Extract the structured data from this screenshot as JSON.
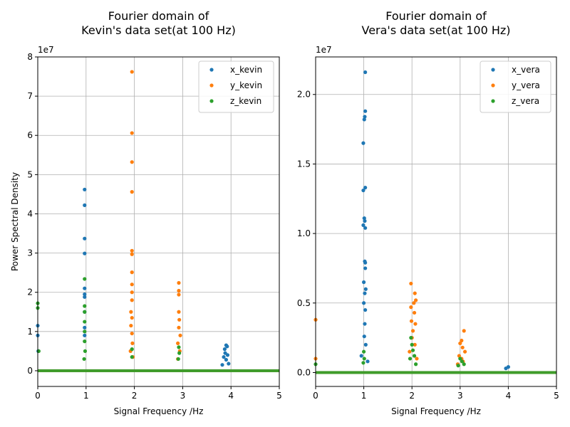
{
  "chart_data": [
    {
      "type": "scatter",
      "title": "Fourier domain of\nKevin's data set(at 100 Hz)",
      "xlabel": "Signal Frequency /Hz",
      "ylabel": "Power Spectral Density",
      "y_offset_label": "1e7",
      "xlim": [
        0,
        5
      ],
      "ylim": [
        -0.4,
        8.0
      ],
      "y_unit_multiplier": 10000000,
      "xticks": [
        0,
        1,
        2,
        3,
        4,
        5
      ],
      "xtick_labels": [
        "0",
        "1",
        "2",
        "3",
        "4",
        "5"
      ],
      "yticks": [
        0,
        1,
        2,
        3,
        4,
        5,
        6,
        7,
        8
      ],
      "ytick_labels": [
        "0",
        "1",
        "2",
        "3",
        "4",
        "5",
        "6",
        "7",
        "8"
      ],
      "grid": true,
      "legend_position": "top-right",
      "series": [
        {
          "name": "x_kevin",
          "color": "#1f77b4",
          "points": [
            [
              0.0,
              1.15
            ],
            [
              0.0,
              0.9
            ],
            [
              0.01,
              0.5
            ],
            [
              0.97,
              4.62
            ],
            [
              0.97,
              4.22
            ],
            [
              0.97,
              3.37
            ],
            [
              0.97,
              2.99
            ],
            [
              0.97,
              2.1
            ],
            [
              0.97,
              1.95
            ],
            [
              0.97,
              1.88
            ],
            [
              0.97,
              1.5
            ],
            [
              0.97,
              1.1
            ],
            [
              0.97,
              0.9
            ],
            [
              3.87,
              0.55
            ],
            [
              3.9,
              0.65
            ],
            [
              3.92,
              0.62
            ],
            [
              3.88,
              0.45
            ],
            [
              3.85,
              0.35
            ],
            [
              3.93,
              0.4
            ],
            [
              3.9,
              0.28
            ],
            [
              3.95,
              0.18
            ],
            [
              3.82,
              0.15
            ]
          ]
        },
        {
          "name": "y_kevin",
          "color": "#ff7f0e",
          "points": [
            [
              1.95,
              7.62
            ],
            [
              1.95,
              6.06
            ],
            [
              1.95,
              5.32
            ],
            [
              1.95,
              4.56
            ],
            [
              1.95,
              3.06
            ],
            [
              1.95,
              2.97
            ],
            [
              1.95,
              2.51
            ],
            [
              1.95,
              2.2
            ],
            [
              1.95,
              2.0
            ],
            [
              1.95,
              1.8
            ],
            [
              1.93,
              1.5
            ],
            [
              1.95,
              1.35
            ],
            [
              1.93,
              1.15
            ],
            [
              1.95,
              0.95
            ],
            [
              1.96,
              0.7
            ],
            [
              1.92,
              0.5
            ],
            [
              1.97,
              0.35
            ],
            [
              2.92,
              2.24
            ],
            [
              2.92,
              2.04
            ],
            [
              2.92,
              1.94
            ],
            [
              2.92,
              1.5
            ],
            [
              2.93,
              1.3
            ],
            [
              2.92,
              1.1
            ],
            [
              2.95,
              0.9
            ],
            [
              2.9,
              0.7
            ],
            [
              2.94,
              0.5
            ],
            [
              2.9,
              0.3
            ]
          ]
        },
        {
          "name": "z_kevin",
          "color": "#2ca02c",
          "points": [
            [
              0.0,
              1.72
            ],
            [
              0.0,
              1.6
            ],
            [
              0.02,
              0.5
            ],
            [
              0.97,
              2.34
            ],
            [
              0.97,
              1.65
            ],
            [
              0.97,
              1.5
            ],
            [
              0.97,
              1.25
            ],
            [
              0.97,
              1.0
            ],
            [
              0.97,
              0.75
            ],
            [
              0.98,
              0.5
            ],
            [
              0.96,
              0.3
            ],
            [
              1.95,
              0.55
            ],
            [
              1.95,
              0.35
            ],
            [
              2.92,
              0.6
            ],
            [
              2.93,
              0.45
            ],
            [
              2.91,
              0.3
            ]
          ]
        }
      ]
    },
    {
      "type": "scatter",
      "title": "Fourier domain of\nVera's data set(at 100 Hz)",
      "xlabel": "Signal Frequency /Hz",
      "ylabel": "",
      "y_offset_label": "1e7",
      "xlim": [
        0,
        5
      ],
      "ylim": [
        -0.1,
        2.27
      ],
      "y_unit_multiplier": 10000000,
      "xticks": [
        0,
        1,
        2,
        3,
        4,
        5
      ],
      "xtick_labels": [
        "0",
        "1",
        "2",
        "3",
        "4",
        "5"
      ],
      "yticks": [
        0.0,
        0.5,
        1.0,
        1.5,
        2.0
      ],
      "ytick_labels": [
        "0.0",
        "0.5",
        "1.0",
        "1.5",
        "2.0"
      ],
      "grid": true,
      "legend_position": "top-right",
      "series": [
        {
          "name": "x_vera",
          "color": "#1f77b4",
          "points": [
            [
              1.03,
              2.16
            ],
            [
              1.03,
              1.88
            ],
            [
              1.02,
              1.84
            ],
            [
              1.01,
              1.82
            ],
            [
              0.99,
              1.65
            ],
            [
              1.03,
              1.33
            ],
            [
              0.99,
              1.31
            ],
            [
              1.01,
              1.11
            ],
            [
              1.02,
              1.09
            ],
            [
              0.99,
              1.06
            ],
            [
              1.03,
              1.04
            ],
            [
              1.02,
              0.8
            ],
            [
              1.03,
              0.79
            ],
            [
              1.03,
              0.75
            ],
            [
              1.0,
              0.65
            ],
            [
              1.04,
              0.6
            ],
            [
              1.02,
              0.57
            ],
            [
              1.0,
              0.5
            ],
            [
              1.03,
              0.45
            ],
            [
              1.02,
              0.35
            ],
            [
              1.01,
              0.26
            ],
            [
              1.04,
              0.2
            ],
            [
              0.95,
              0.12
            ],
            [
              1.08,
              0.08
            ],
            [
              4.0,
              0.04
            ],
            [
              3.95,
              0.03
            ]
          ]
        },
        {
          "name": "y_vera",
          "color": "#ff7f0e",
          "points": [
            [
              0.0,
              0.38
            ],
            [
              0.0,
              0.1
            ],
            [
              1.98,
              0.64
            ],
            [
              2.06,
              0.57
            ],
            [
              2.08,
              0.52
            ],
            [
              2.04,
              0.5
            ],
            [
              1.98,
              0.47
            ],
            [
              2.05,
              0.43
            ],
            [
              1.99,
              0.37
            ],
            [
              2.07,
              0.35
            ],
            [
              2.02,
              0.3
            ],
            [
              2.0,
              0.25
            ],
            [
              2.06,
              0.2
            ],
            [
              1.95,
              0.15
            ],
            [
              2.1,
              0.1
            ],
            [
              3.08,
              0.3
            ],
            [
              3.03,
              0.23
            ],
            [
              3.0,
              0.21
            ],
            [
              3.05,
              0.18
            ],
            [
              3.1,
              0.15
            ],
            [
              2.98,
              0.12
            ],
            [
              3.03,
              0.1
            ],
            [
              3.06,
              0.08
            ],
            [
              2.95,
              0.06
            ]
          ]
        },
        {
          "name": "z_vera",
          "color": "#2ca02c",
          "points": [
            [
              0.0,
              0.06
            ],
            [
              1.0,
              0.15
            ],
            [
              1.01,
              0.1
            ],
            [
              0.99,
              0.07
            ],
            [
              1.98,
              0.25
            ],
            [
              2.0,
              0.2
            ],
            [
              2.02,
              0.16
            ],
            [
              2.05,
              0.12
            ],
            [
              1.96,
              0.1
            ],
            [
              2.08,
              0.06
            ],
            [
              3.0,
              0.1
            ],
            [
              3.04,
              0.08
            ],
            [
              3.08,
              0.06
            ],
            [
              2.96,
              0.05
            ]
          ]
        }
      ]
    }
  ]
}
